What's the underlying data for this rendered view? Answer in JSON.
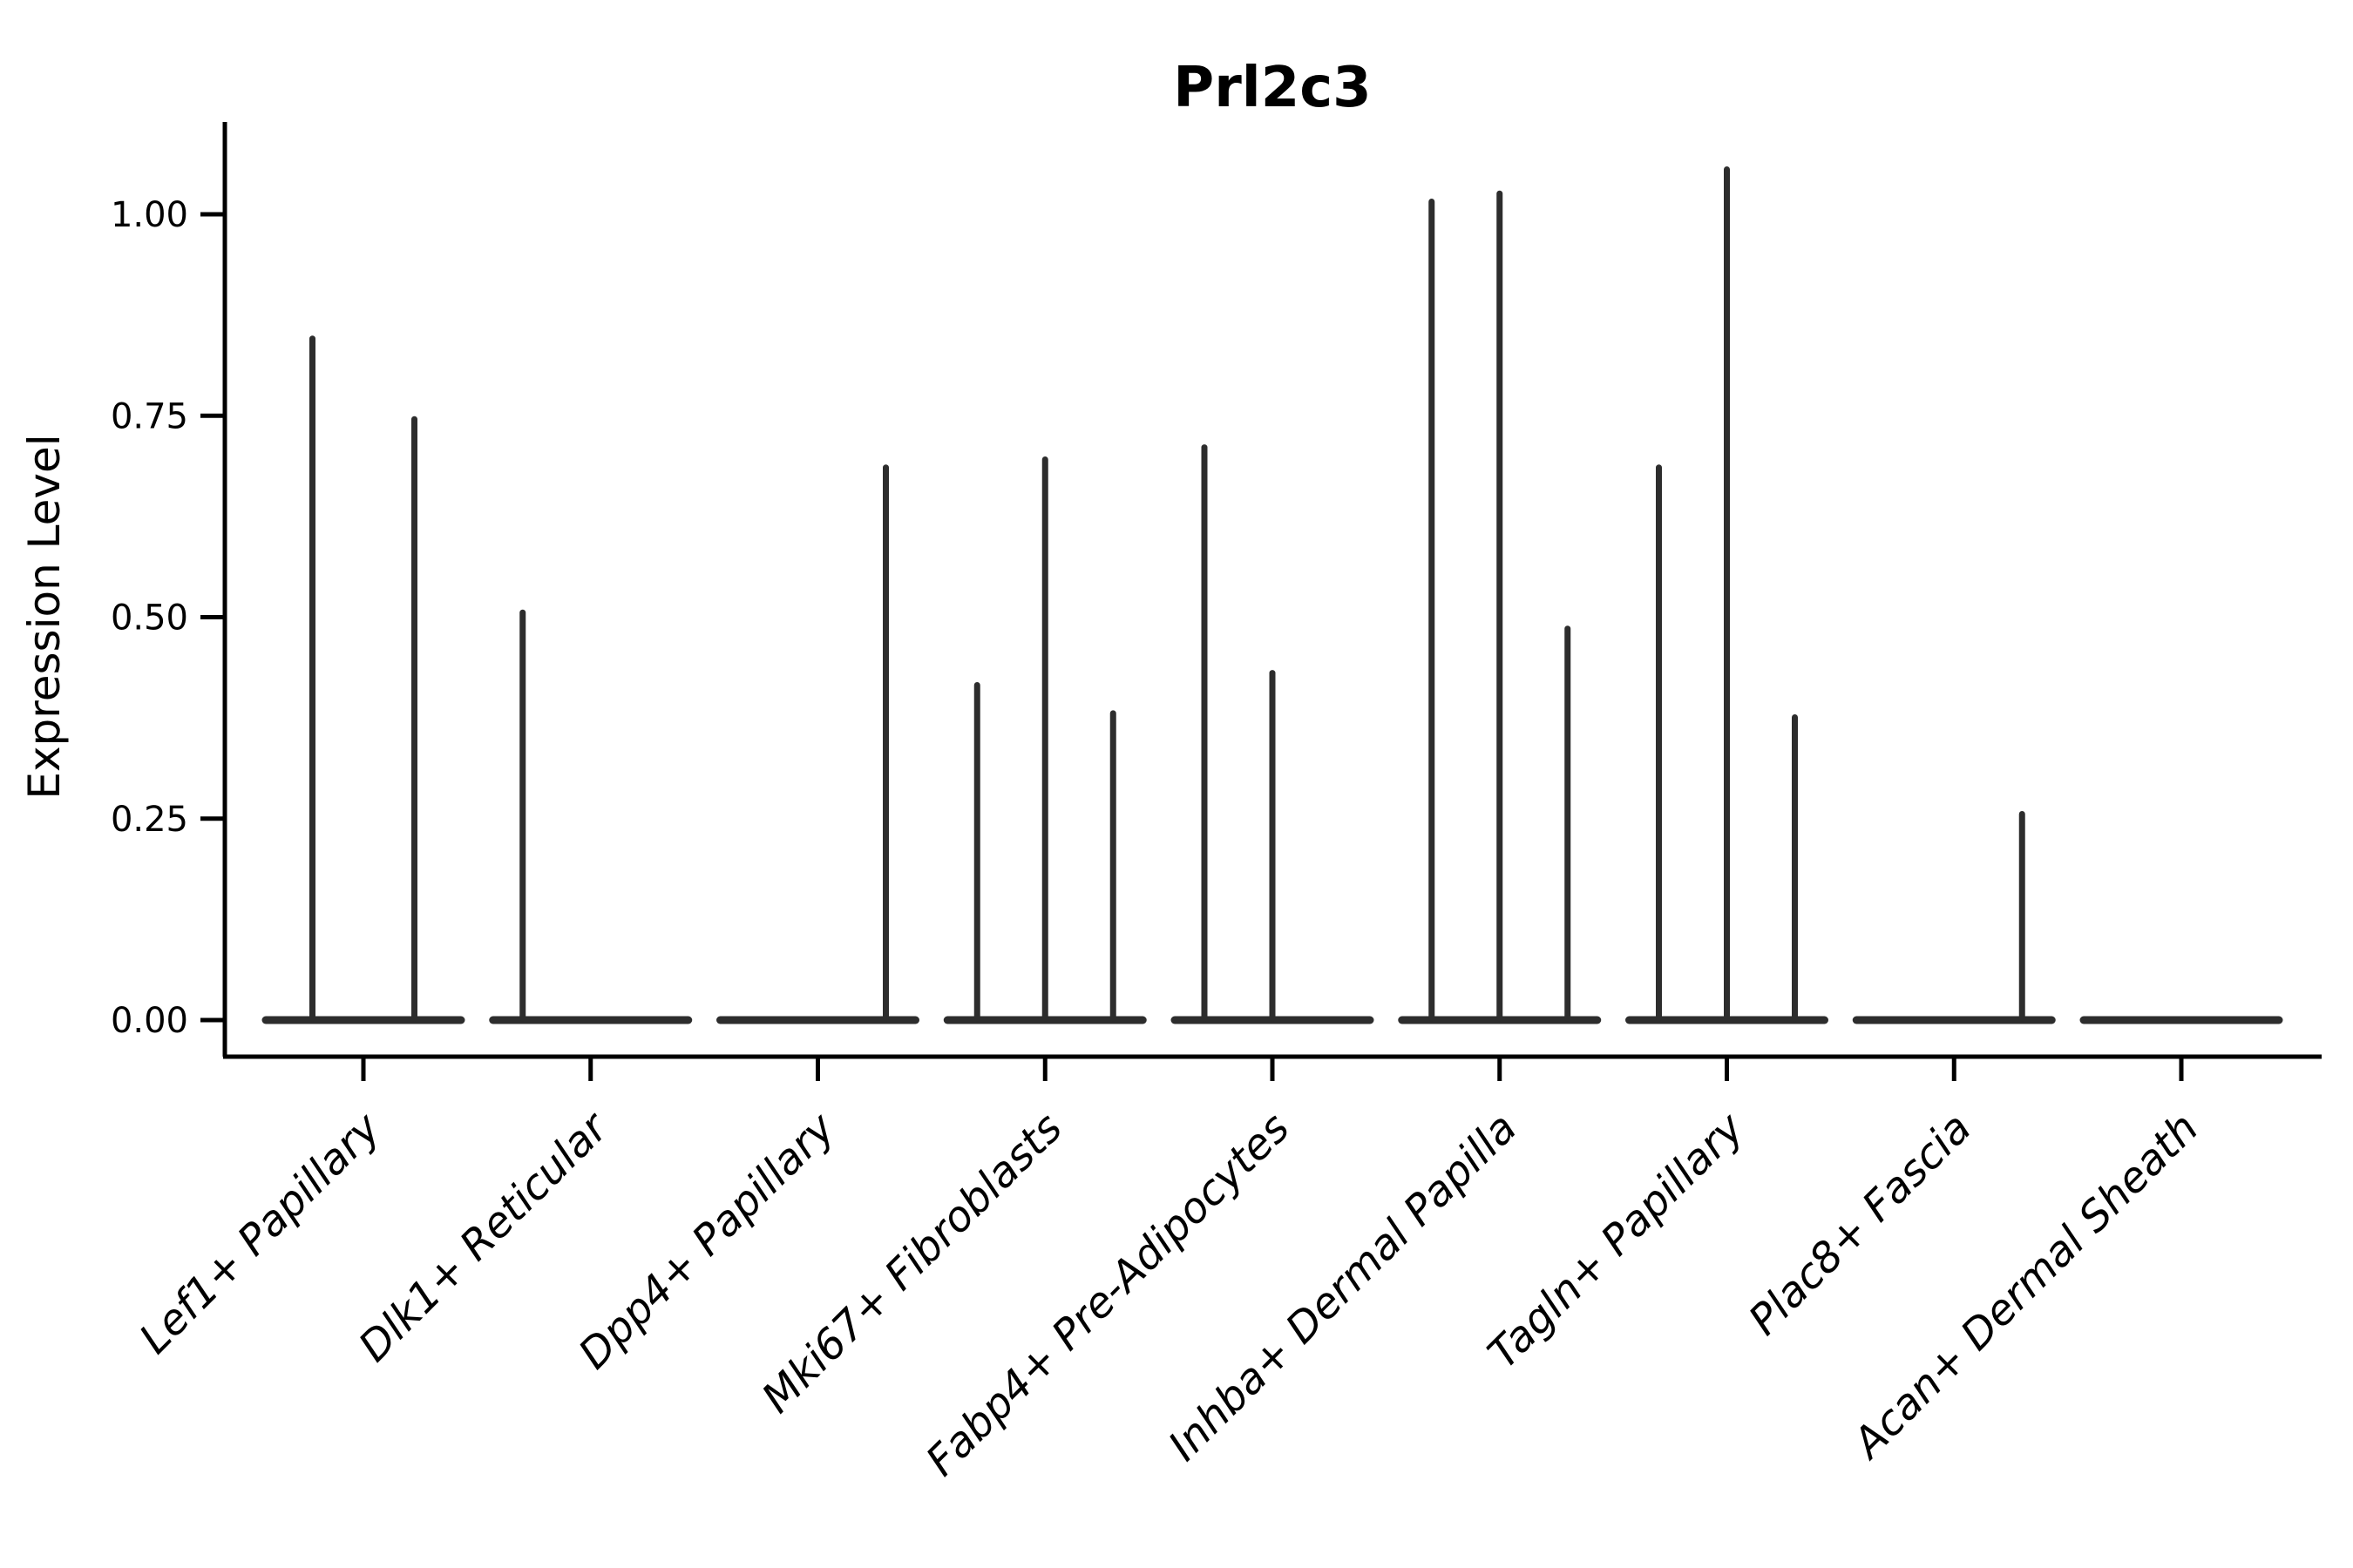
{
  "chart_data": {
    "type": "violin",
    "title": "Prl2c3",
    "xlabel": "",
    "ylabel": "Expression Level",
    "ylim": [
      0,
      1.12
    ],
    "grid": false,
    "legend": "none",
    "y_ticks": [
      {
        "value": 0.0,
        "label": "0.00"
      },
      {
        "value": 0.25,
        "label": "0.25"
      },
      {
        "value": 0.5,
        "label": "0.50"
      },
      {
        "value": 0.75,
        "label": "0.75"
      },
      {
        "value": 1.0,
        "label": "1.00"
      }
    ],
    "categories": [
      "Lef1+ Papillary",
      "Dlk1+ Reticular",
      "Dpp4+ Papillary",
      "Mki67+ Fibroblasts",
      "Fabp4+ Pre-Adipocytes",
      "Inhba+ Dermal Papilla",
      "Tagln+ Papillary",
      "Plac8+ Fascia",
      "Acan+ Dermal Sheath"
    ],
    "violin_description": "Each category shows side-by-side split violins collapsed to a flat base at 0 expression; non-zero expressing groups appear as thin vertical spikes reaching the group's maximum expression level.",
    "group_max_values": [
      [
        0.85,
        0.75
      ],
      [
        0.51,
        0,
        0
      ],
      [
        0,
        0,
        0.69
      ],
      [
        0.42,
        0.7,
        0.385
      ],
      [
        0.715,
        0.435,
        0
      ],
      [
        1.02,
        1.03,
        0.49
      ],
      [
        0.69,
        1.06,
        0.38
      ],
      [
        0,
        0,
        0.26
      ],
      [
        0,
        0,
        0
      ]
    ]
  },
  "colors": {
    "background": "#ffffff",
    "violin": "#2d2d2d",
    "axis": "#000000",
    "text": "#000000"
  }
}
